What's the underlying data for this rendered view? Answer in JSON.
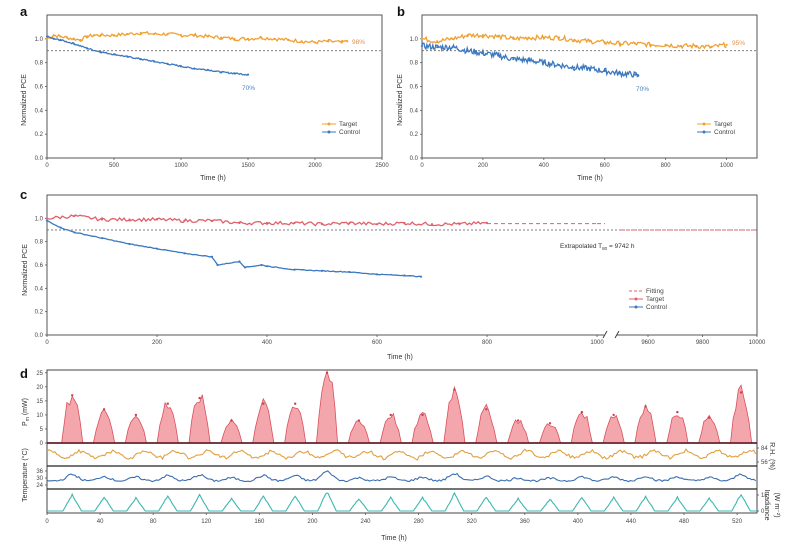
{
  "figure": {
    "panel_labels": [
      "a",
      "b",
      "c",
      "d"
    ]
  },
  "colors": {
    "target_orange": "#f0a030",
    "control_blue": "#3c78c0",
    "target_red": "#e0606a",
    "fill_red": "#f4a6ad",
    "rh_orange": "#e0a040",
    "temp_blue": "#3c6fb0",
    "irr_teal": "#3bb8b0",
    "threshold": "#555555"
  },
  "chart_data": [
    {
      "id": "a",
      "type": "line",
      "title": "",
      "xlabel": "Time (h)",
      "ylabel": "Normalized PCE",
      "xlim": [
        0,
        2500
      ],
      "ylim": [
        0,
        1.2
      ],
      "xticks": [
        0,
        500,
        1000,
        1500,
        2000,
        2500
      ],
      "yticks": [
        0.0,
        0.2,
        0.4,
        0.6,
        0.8,
        1.0
      ],
      "threshold": 0.9,
      "legend": {
        "position": "bottom-right",
        "entries": [
          "Target",
          "Control"
        ]
      },
      "series": [
        {
          "name": "Target",
          "color": "#f0a030",
          "x": [
            0,
            50,
            100,
            150,
            200,
            250,
            300,
            350,
            400,
            500,
            600,
            700,
            800,
            900,
            1000,
            1100,
            1200,
            1300,
            1400,
            1500,
            1600,
            1700,
            1800,
            1900,
            2000,
            2100,
            2200,
            2240
          ],
          "y": [
            1.0,
            1.03,
            1.02,
            1.01,
            1.0,
            0.99,
            1.02,
            1.03,
            1.03,
            1.03,
            1.04,
            1.05,
            1.04,
            1.04,
            1.03,
            1.03,
            1.02,
            1.01,
            1.0,
            1.0,
            1.01,
            1.0,
            0.99,
            0.98,
            0.97,
            0.98,
            0.97,
            0.98
          ]
        },
        {
          "name": "Control",
          "color": "#3c78c0",
          "x": [
            0,
            50,
            100,
            200,
            300,
            400,
            500,
            600,
            700,
            800,
            900,
            1000,
            1100,
            1200,
            1300,
            1400,
            1500
          ],
          "y": [
            1.02,
            1.0,
            0.99,
            0.96,
            0.92,
            0.89,
            0.87,
            0.85,
            0.83,
            0.81,
            0.79,
            0.77,
            0.75,
            0.74,
            0.72,
            0.71,
            0.7
          ]
        }
      ],
      "annotations": [
        {
          "text": "98%",
          "series": "Target"
        },
        {
          "text": "70%",
          "series": "Control"
        }
      ]
    },
    {
      "id": "b",
      "type": "scatter",
      "title": "",
      "xlabel": "Time (h)",
      "ylabel": "Normalized PCE",
      "xlim": [
        0,
        1100
      ],
      "ylim": [
        0,
        1.2
      ],
      "xticks": [
        0,
        200,
        400,
        600,
        800,
        1000
      ],
      "yticks": [
        0.0,
        0.2,
        0.4,
        0.6,
        0.8,
        1.0
      ],
      "threshold": 0.9,
      "legend": {
        "position": "bottom-right",
        "entries": [
          "Target",
          "Control"
        ]
      },
      "series": [
        {
          "name": "Target",
          "color": "#f0a030",
          "x": [
            0,
            50,
            100,
            150,
            200,
            250,
            300,
            350,
            400,
            450,
            500,
            550,
            600,
            650,
            700,
            750,
            800,
            850,
            900,
            950,
            1000
          ],
          "y": [
            1.0,
            0.98,
            1.0,
            1.03,
            1.03,
            1.02,
            1.0,
            1.01,
            1.01,
            1.01,
            0.99,
            0.98,
            0.97,
            0.96,
            0.96,
            0.95,
            0.95,
            0.94,
            0.94,
            0.93,
            0.95
          ]
        },
        {
          "name": "Control",
          "color": "#3c78c0",
          "x": [
            0,
            50,
            100,
            150,
            200,
            250,
            300,
            350,
            400,
            450,
            500,
            550,
            600,
            650,
            700,
            710
          ],
          "y": [
            0.94,
            0.93,
            0.93,
            0.9,
            0.88,
            0.86,
            0.83,
            0.82,
            0.8,
            0.78,
            0.76,
            0.75,
            0.73,
            0.71,
            0.7,
            0.69
          ]
        }
      ],
      "annotations": [
        {
          "text": "95%",
          "series": "Target"
        },
        {
          "text": "70%",
          "series": "Control"
        }
      ]
    },
    {
      "id": "c",
      "type": "scatter",
      "title": "",
      "xlabel": "Time (h)",
      "ylabel": "Normalized PCE",
      "ylim": [
        0,
        1.2
      ],
      "x_segments": [
        [
          0,
          1000
        ],
        [
          9500,
          10000
        ]
      ],
      "xticks": [
        0,
        200,
        400,
        600,
        800,
        1000,
        9600,
        9800,
        10000
      ],
      "yticks": [
        0.0,
        0.2,
        0.4,
        0.6,
        0.8,
        1.0
      ],
      "threshold": 0.9,
      "legend": {
        "position": "bottom-right",
        "entries": [
          "Fitting",
          "Target",
          "Control"
        ]
      },
      "series": [
        {
          "name": "Target",
          "color": "#e0606a",
          "x": [
            0,
            50,
            100,
            150,
            200,
            250,
            300,
            350,
            400,
            450,
            500,
            550,
            600,
            650,
            700,
            750,
            800
          ],
          "y": [
            1.0,
            1.02,
            0.99,
            0.99,
            0.99,
            0.98,
            0.98,
            0.96,
            0.96,
            0.96,
            0.95,
            0.96,
            0.95,
            0.96,
            0.95,
            0.95,
            0.96
          ]
        },
        {
          "name": "Control",
          "color": "#3c78c0",
          "x": [
            0,
            25,
            50,
            100,
            150,
            200,
            250,
            300,
            310,
            350,
            360,
            390,
            400,
            450,
            500,
            550,
            600,
            650,
            680
          ],
          "y": [
            0.98,
            0.92,
            0.88,
            0.83,
            0.78,
            0.74,
            0.7,
            0.67,
            0.6,
            0.63,
            0.58,
            0.6,
            0.59,
            0.56,
            0.55,
            0.54,
            0.52,
            0.51,
            0.5
          ]
        },
        {
          "name": "Fitting",
          "color": "#e0606a",
          "style": "dashed",
          "x": [
            800,
            1000
          ],
          "y": [
            0.955,
            0.955
          ]
        }
      ],
      "annotations": [
        {
          "text": "Extrapolated T",
          "subscript": "80",
          "suffix": " = 9742 h"
        }
      ]
    },
    {
      "id": "d",
      "type": "area",
      "title": "",
      "xlabel": "Time (h)",
      "xlim": [
        0,
        535
      ],
      "xticks": [
        0,
        40,
        80,
        120,
        160,
        200,
        240,
        280,
        320,
        360,
        400,
        440,
        480,
        520
      ],
      "subplots": [
        {
          "name": "Pm",
          "ylabel": "P",
          "ylabel_sub": "m",
          "ylabel_unit": " (mW)",
          "yticks": [
            0,
            5,
            10,
            15,
            20,
            25
          ],
          "ylim": [
            0,
            26
          ],
          "color": "#e0606a",
          "peaks": [
            {
              "x": 19,
              "y": 17
            },
            {
              "x": 43,
              "y": 12
            },
            {
              "x": 67,
              "y": 10
            },
            {
              "x": 91,
              "y": 14
            },
            {
              "x": 115,
              "y": 16
            },
            {
              "x": 139,
              "y": 8
            },
            {
              "x": 163,
              "y": 14
            },
            {
              "x": 187,
              "y": 14
            },
            {
              "x": 211,
              "y": 25
            },
            {
              "x": 235,
              "y": 8
            },
            {
              "x": 259,
              "y": 10
            },
            {
              "x": 283,
              "y": 10
            },
            {
              "x": 307,
              "y": 19
            },
            {
              "x": 331,
              "y": 12
            },
            {
              "x": 355,
              "y": 8
            },
            {
              "x": 379,
              "y": 7
            },
            {
              "x": 403,
              "y": 11
            },
            {
              "x": 427,
              "y": 10
            },
            {
              "x": 451,
              "y": 13
            },
            {
              "x": 475,
              "y": 11
            },
            {
              "x": 499,
              "y": 9
            },
            {
              "x": 523,
              "y": 18
            }
          ]
        },
        {
          "name": "R.H.",
          "ylabel": "R.H. (%)",
          "yticks": [
            56,
            84
          ],
          "color": "#e0a040"
        },
        {
          "name": "Temperature",
          "ylabel": "Temperature (°C)",
          "yticks": [
            24,
            30,
            36
          ],
          "color": "#3c6fb0"
        },
        {
          "name": "Irradiance",
          "ylabel": "Irradiance (W m⁻²)",
          "yticks": [
            "0",
            "1k"
          ],
          "color": "#3bb8b0"
        }
      ]
    }
  ],
  "labels": {
    "ylabel_pce": "Normalized PCE",
    "xlabel_time": "Time (h)",
    "legend_target": "Target",
    "legend_control": "Control",
    "legend_fitting": "Fitting",
    "a_target_pct": "98%",
    "a_control_pct": "70%",
    "b_target_pct": "95%",
    "b_control_pct": "70%",
    "c_extrap": "Extrapolated T",
    "c_extrap_sub": "80",
    "c_extrap_val": " = 9742 h",
    "d_temp_label": "Temperature (°C)",
    "d_rh_label": "R.H.",
    "d_rh_unit": "(%)",
    "d_irr_label": "Irradiance",
    "d_irr_unit": "(W m⁻²)",
    "d_pm_label": "P",
    "d_pm_sub": "m",
    "d_pm_unit": " (mW)"
  }
}
